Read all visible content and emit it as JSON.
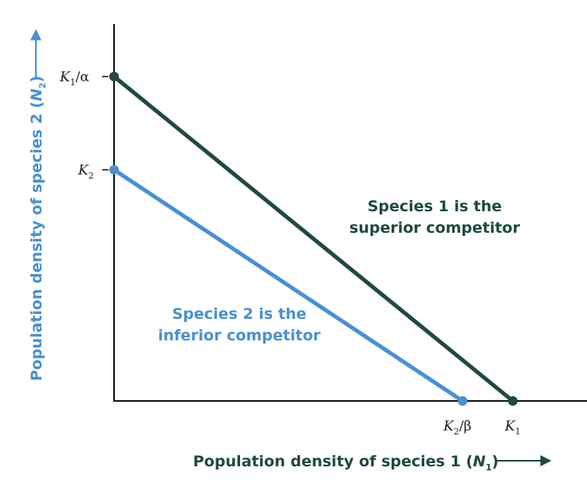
{
  "y_axis_label": {
    "text": "Population density of species 2 (",
    "var": "N",
    "sub": "2",
    "close": ")"
  },
  "x_axis_label": {
    "text": "Population density of species 1 (",
    "var": "N",
    "sub": "1",
    "close": ")"
  },
  "y_ticks": [
    {
      "var": "K",
      "sub": "1",
      "rest": "/α"
    },
    {
      "var": "K",
      "sub": "2"
    }
  ],
  "x_ticks": [
    {
      "var": "K",
      "sub": "2",
      "rest": "/β"
    },
    {
      "var": "K",
      "sub": "1"
    }
  ],
  "annotations": [
    {
      "lines": [
        "Species 1 is the",
        "superior competitor"
      ]
    },
    {
      "lines": [
        "Species 2 is the",
        "inferior competitor"
      ]
    }
  ]
}
